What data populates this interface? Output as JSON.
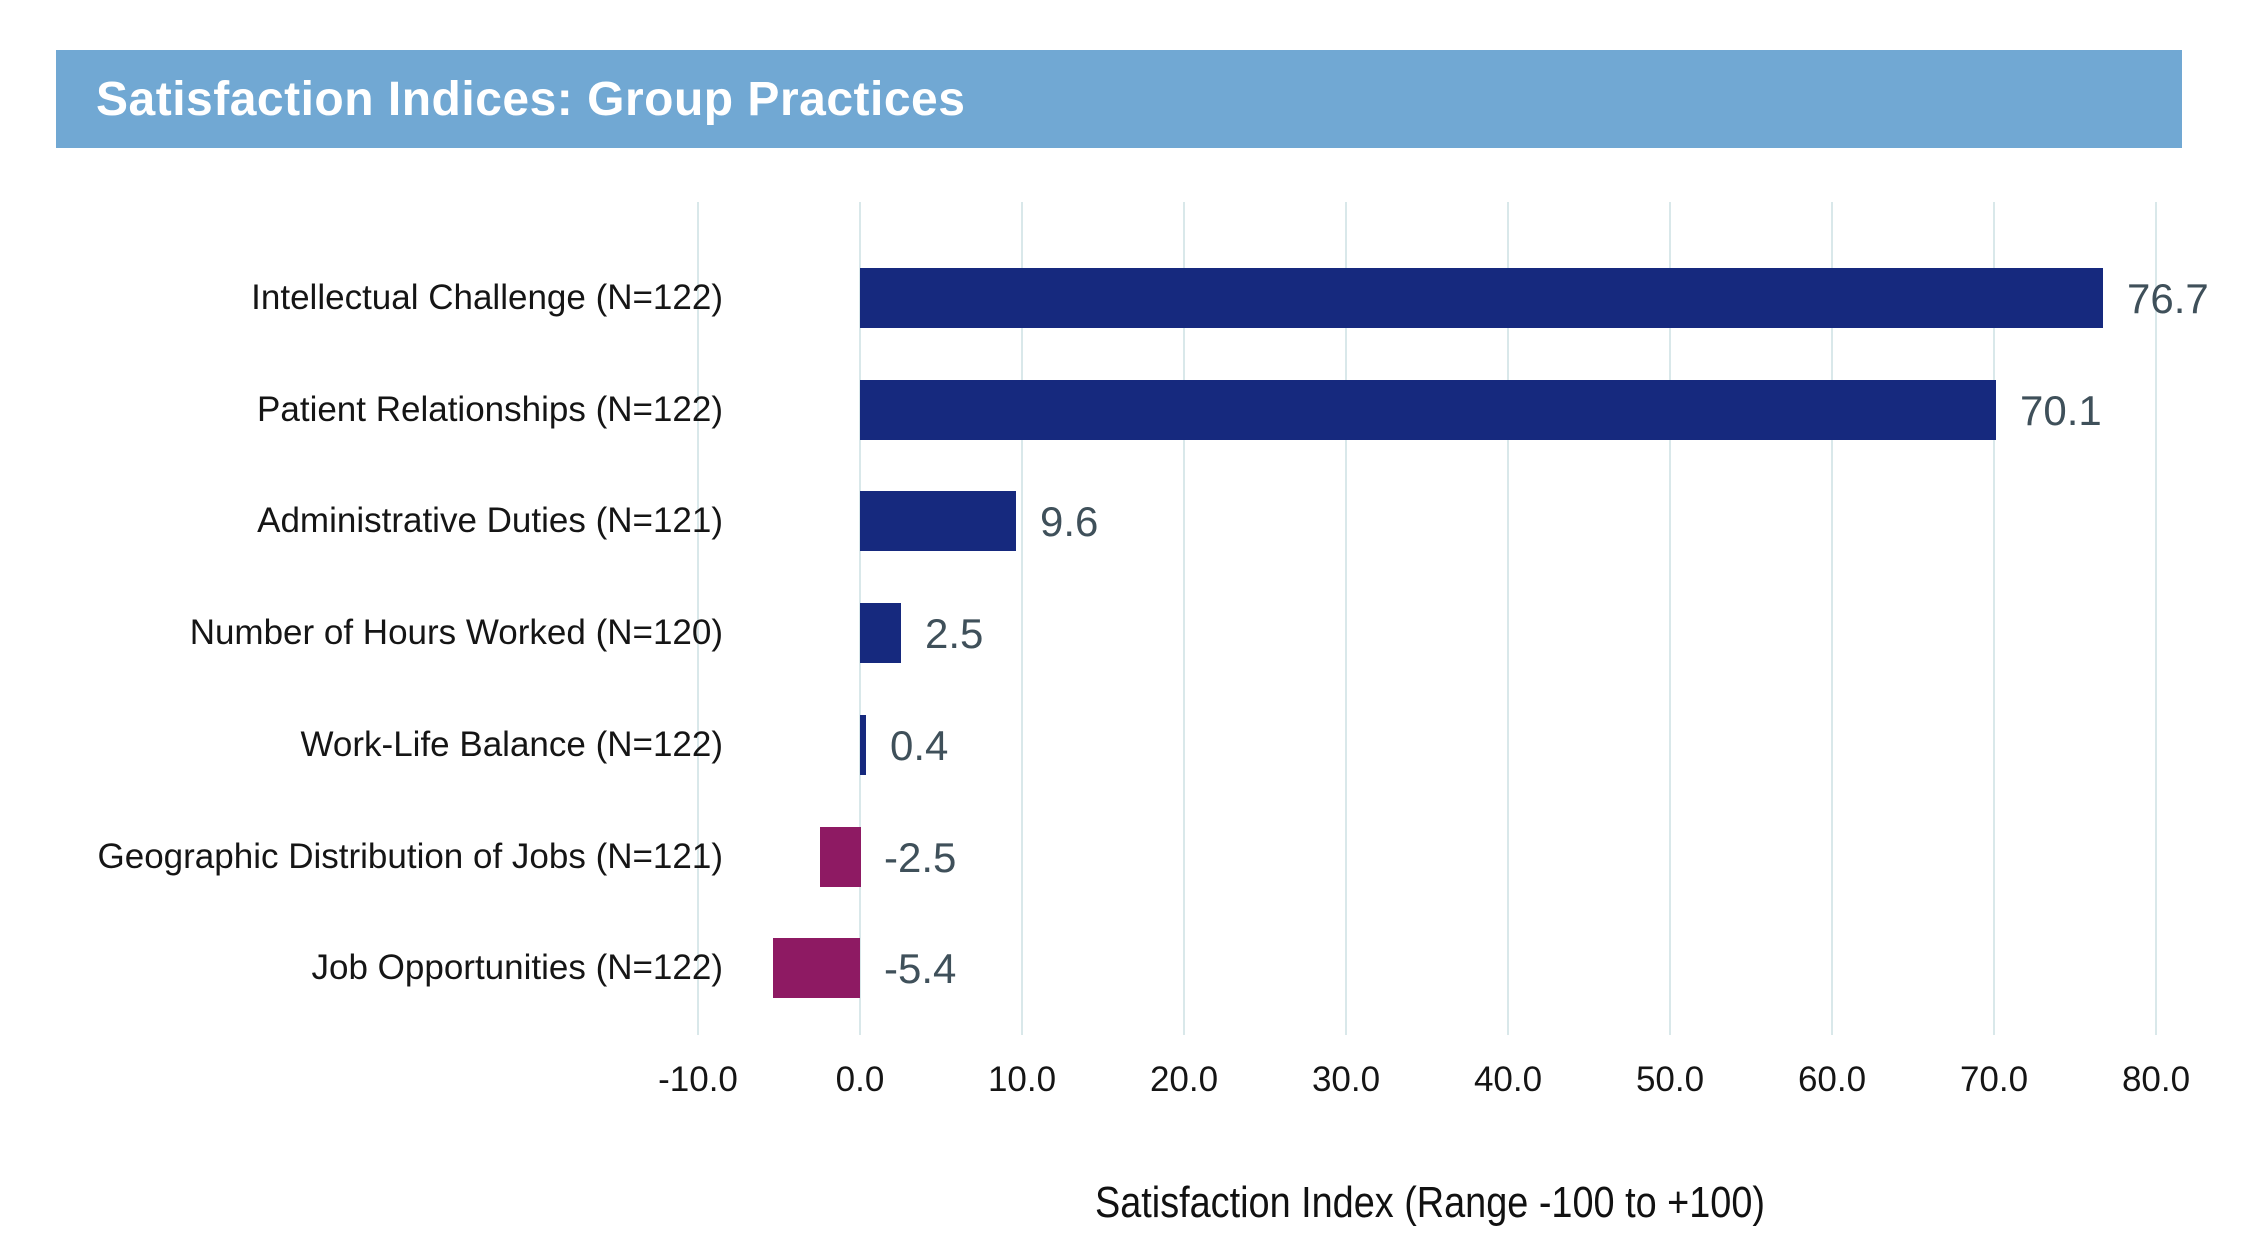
{
  "header": {
    "title": "Satisfaction Indices: Group Practices",
    "bg_color": "#71A8D3",
    "text_color": "#FFFFFF"
  },
  "chart_data": {
    "type": "bar",
    "orientation": "horizontal",
    "title": "Satisfaction Indices: Group Practices",
    "xlabel": "Satisfaction Index (Range -100 to +100)",
    "categories": [
      "Intellectual Challenge (N=122)",
      "Patient Relationships (N=122)",
      "Administrative Duties (N=121)",
      "Number of Hours Worked (N=120)",
      "Work-Life Balance (N=122)",
      "Geographic Distribution of Jobs (N=121)",
      "Job Opportunities (N=122)"
    ],
    "values": [
      76.7,
      70.1,
      9.6,
      2.5,
      0.4,
      -2.5,
      -5.4
    ],
    "value_labels": [
      "76.7",
      "70.1",
      "9.6",
      "2.5",
      "0.4",
      "-2.5",
      "-5.4"
    ],
    "xlim": [
      -15,
      81
    ],
    "xticks": [
      -10,
      0,
      10,
      20,
      30,
      40,
      50,
      60,
      70,
      80
    ],
    "xtick_labels": [
      "-10.0",
      "0.0",
      "10.0",
      "20.0",
      "30.0",
      "40.0",
      "50.0",
      "60.0",
      "70.0",
      "80.0"
    ],
    "grid": true,
    "legend": "none",
    "colors": {
      "positive_bar": "#16297E",
      "negative_bar": "#8E1A63",
      "gridline": "#D9E8EA",
      "value_label": "#3F505A",
      "axis_text": "#151515"
    }
  }
}
